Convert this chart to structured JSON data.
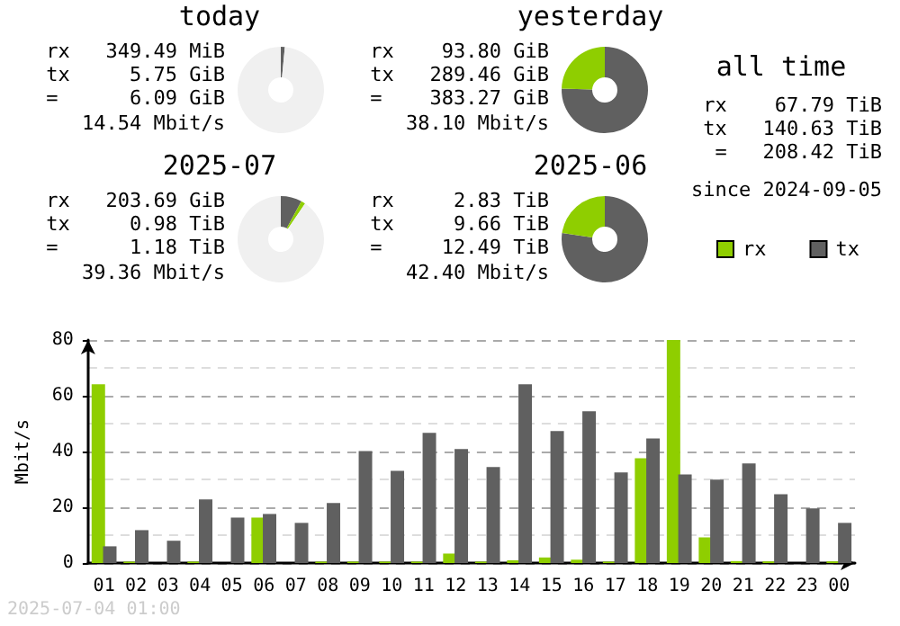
{
  "chart_data": [
    {
      "type": "donut",
      "title": "today",
      "categories": [
        null,
        null
      ],
      "values": [
        1.5,
        98.5
      ],
      "colors": [
        "#606060",
        "#f0f0f0"
      ],
      "annotations": [
        "rx   349.49 MiB",
        "tx     5.75 GiB",
        "=      6.09 GiB",
        "14.54 Mbit/s"
      ]
    },
    {
      "type": "donut",
      "title": "yesterday",
      "categories": [
        null,
        null
      ],
      "values": [
        75.5,
        24.5
      ],
      "colors": [
        "#606060",
        "#8fce00"
      ],
      "annotations": [
        "rx    93.80 GiB",
        "tx   289.46 GiB",
        "=    383.27 GiB",
        "38.10 Mbit/s"
      ]
    },
    {
      "type": "other",
      "title": "all time",
      "annotations": [
        "rx    67.79 TiB",
        "tx   140.63 TiB",
        "=   208.42 TiB",
        "since 2024-09-05"
      ]
    },
    {
      "type": "donut",
      "title": "2025-07",
      "categories": [
        null,
        null,
        null
      ],
      "values": [
        7.9,
        1.6,
        90.5
      ],
      "colors": [
        "#606060",
        "#8fce00",
        "#f0f0f0"
      ],
      "annotations": [
        "rx   203.69 GiB",
        "tx     0.98 TiB",
        "=      1.18 TiB",
        "39.36 Mbit/s"
      ]
    },
    {
      "type": "donut",
      "title": "2025-06",
      "categories": [
        null,
        null
      ],
      "values": [
        77.3,
        22.7
      ],
      "colors": [
        "#606060",
        "#8fce00"
      ],
      "annotations": [
        "rx     2.83 TiB",
        "tx     9.66 TiB",
        "=     12.49 TiB",
        "42.40 Mbit/s"
      ]
    },
    {
      "type": "bar",
      "categories": [
        "01",
        "02",
        "03",
        "04",
        "05",
        "06",
        "07",
        "08",
        "09",
        "10",
        "11",
        "12",
        "13",
        "14",
        "15",
        "16",
        "17",
        "18",
        "19",
        "20",
        "21",
        "22",
        "23",
        "00"
      ],
      "ylabel": "Mbit/s",
      "ylim": [
        0,
        80
      ],
      "yticks": [
        0,
        20,
        40,
        60,
        80
      ],
      "grid": true,
      "legend": "top right",
      "annotations": [
        "2025-07-04 01:00"
      ],
      "series": [
        {
          "name": "rx",
          "color": "#8fce00",
          "values": [
            64.1,
            0.5,
            0,
            0.5,
            0,
            16.3,
            0,
            0.5,
            0.5,
            0.5,
            0.5,
            3.4,
            0.5,
            1,
            2,
            1.2,
            0.5,
            37.6,
            80,
            9.2,
            0.7,
            0.6,
            0,
            0.6
          ]
        },
        {
          "name": "tx",
          "color": "#606060",
          "values": [
            6.0,
            11.8,
            8.0,
            22.8,
            16.3,
            17.6,
            14.4,
            21.5,
            40.2,
            33.1,
            46.7,
            40.9,
            34.4,
            64.1,
            47.3,
            54.4,
            32.5,
            44.7,
            31.8,
            29.9,
            35.7,
            24.7,
            19.6,
            14.4
          ]
        }
      ]
    }
  ]
}
